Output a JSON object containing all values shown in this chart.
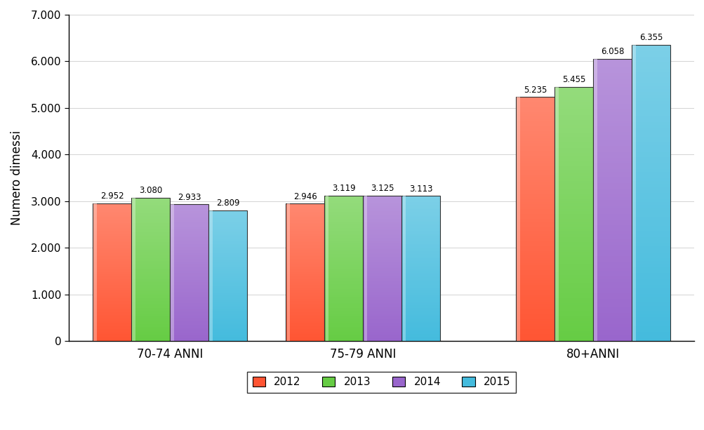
{
  "categories": [
    "70-74 ANNI",
    "75-79 ANNI",
    "80+ANNI"
  ],
  "series": {
    "2012": [
      2952,
      2946,
      5235
    ],
    "2013": [
      3080,
      3119,
      5455
    ],
    "2014": [
      2933,
      3125,
      6058
    ],
    "2015": [
      2809,
      3113,
      6355
    ]
  },
  "labels": {
    "2012": [
      "2.952",
      "2.946",
      "5.235"
    ],
    "2013": [
      "3.080",
      "3.119",
      "5.455"
    ],
    "2014": [
      "2.933",
      "3.125",
      "6.058"
    ],
    "2015": [
      "2.809",
      "3.113",
      "6.355"
    ]
  },
  "colors": {
    "2012": "#FF5533",
    "2013": "#66CC44",
    "2014": "#9966CC",
    "2015": "#44BBDD"
  },
  "ylabel": "Numero dimessi",
  "ylim": [
    0,
    7000
  ],
  "yticks": [
    0,
    1000,
    2000,
    3000,
    4000,
    5000,
    6000,
    7000
  ],
  "ytick_labels": [
    "0",
    "1.000",
    "2.000",
    "3.000",
    "4.000",
    "5.000",
    "6.000",
    "7.000"
  ],
  "legend_years": [
    "2012",
    "2013",
    "2014",
    "2015"
  ],
  "background_color": "#FFFFFF",
  "bar_edge_color": "#333333"
}
